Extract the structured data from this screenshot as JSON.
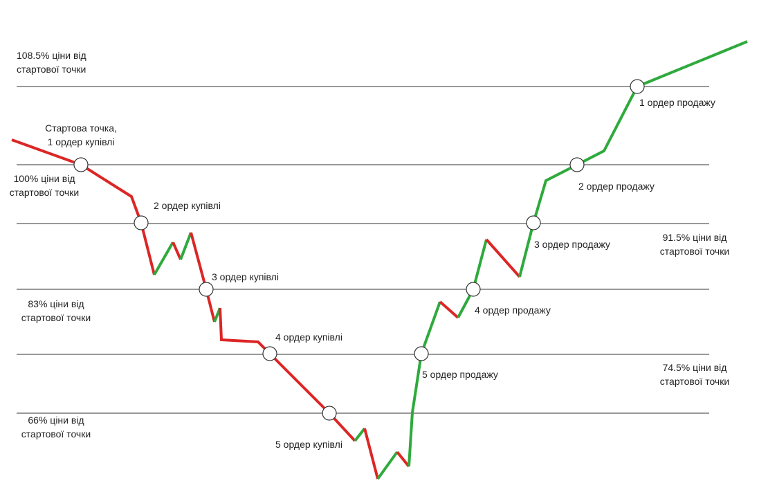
{
  "colors": {
    "down": "#dc2626",
    "up": "#2eaa3c",
    "level": "#333333",
    "marker_fill": "#ffffff",
    "marker_stroke": "#333333",
    "text": "#222222"
  },
  "diagram": {
    "start_point": {
      "title": "Стартова точка,",
      "order": "1 ордер купівлі"
    },
    "level_labels": {
      "l108": {
        "line1": "108.5% ціни від",
        "line2": "стартової точки"
      },
      "l100": {
        "line1": "100% ціни від",
        "line2": "стартової точки"
      },
      "l91": {
        "line1": "91.5% ціни від",
        "line2": "стартової точки"
      },
      "l83": {
        "line1": "83% ціни від",
        "line2": "стартової точки"
      },
      "l74": {
        "line1": "74.5% ціни від",
        "line2": "стартової точки"
      },
      "l66": {
        "line1": "66% ціни від",
        "line2": "стартової точки"
      }
    },
    "buy_orders": [
      "2 ордер купівлі",
      "3 ордер купівлі",
      "4 ордер купівлі",
      "5 ордер купівлі"
    ],
    "sell_orders": [
      "1 ордер продажу",
      "2 ордер продажу",
      "3 ордер продажу",
      "4 ордер продажу",
      "5 ордер продажу"
    ]
  }
}
